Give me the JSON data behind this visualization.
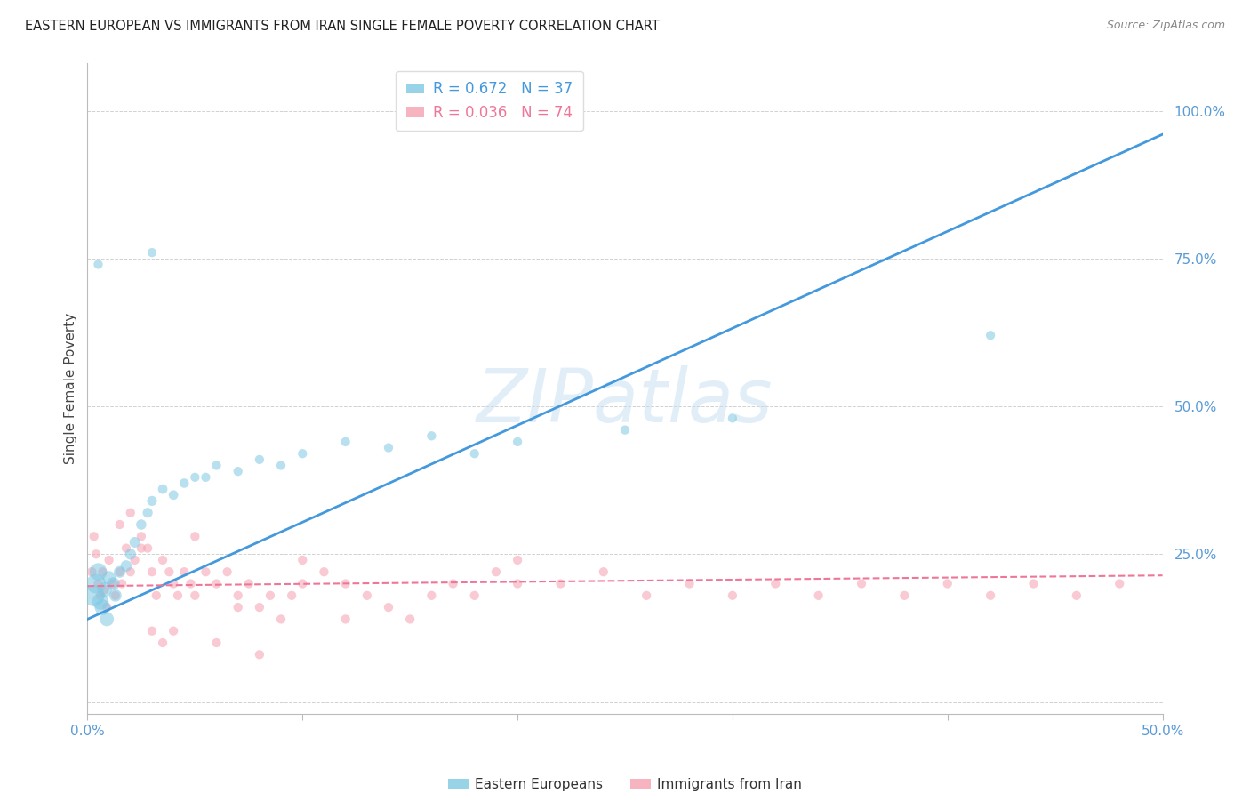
{
  "title": "EASTERN EUROPEAN VS IMMIGRANTS FROM IRAN SINGLE FEMALE POVERTY CORRELATION CHART",
  "source": "Source: ZipAtlas.com",
  "ylabel": "Single Female Poverty",
  "watermark": "ZIPatlas",
  "xlim": [
    0.0,
    0.5
  ],
  "ylim": [
    -0.02,
    1.08
  ],
  "blue_R": 0.672,
  "blue_N": 37,
  "pink_R": 0.036,
  "pink_N": 74,
  "blue_color": "#7ec8e3",
  "pink_color": "#f5a0b0",
  "blue_line_color": "#4499dd",
  "pink_line_color": "#ee7799",
  "legend_label_blue": "Eastern Europeans",
  "legend_label_pink": "Immigrants from Iran",
  "blue_scatter_x": [
    0.003,
    0.004,
    0.005,
    0.006,
    0.007,
    0.008,
    0.009,
    0.01,
    0.012,
    0.013,
    0.015,
    0.018,
    0.02,
    0.022,
    0.025,
    0.028,
    0.03,
    0.035,
    0.04,
    0.045,
    0.05,
    0.055,
    0.06,
    0.07,
    0.08,
    0.09,
    0.1,
    0.12,
    0.14,
    0.16,
    0.18,
    0.2,
    0.25,
    0.3,
    0.03,
    0.42,
    0.005
  ],
  "blue_scatter_y": [
    0.18,
    0.2,
    0.22,
    0.17,
    0.16,
    0.19,
    0.14,
    0.21,
    0.2,
    0.18,
    0.22,
    0.23,
    0.25,
    0.27,
    0.3,
    0.32,
    0.34,
    0.36,
    0.35,
    0.37,
    0.38,
    0.38,
    0.4,
    0.39,
    0.41,
    0.4,
    0.42,
    0.44,
    0.43,
    0.45,
    0.42,
    0.44,
    0.46,
    0.48,
    0.76,
    0.62,
    0.74
  ],
  "blue_scatter_size": [
    300,
    250,
    200,
    180,
    160,
    140,
    130,
    120,
    110,
    100,
    90,
    85,
    80,
    75,
    70,
    65,
    65,
    60,
    60,
    58,
    55,
    55,
    55,
    55,
    55,
    55,
    55,
    55,
    55,
    55,
    55,
    55,
    55,
    55,
    55,
    55,
    55
  ],
  "pink_scatter_x": [
    0.002,
    0.003,
    0.004,
    0.005,
    0.006,
    0.007,
    0.008,
    0.009,
    0.01,
    0.012,
    0.013,
    0.015,
    0.016,
    0.018,
    0.02,
    0.022,
    0.025,
    0.028,
    0.03,
    0.032,
    0.035,
    0.038,
    0.04,
    0.042,
    0.045,
    0.048,
    0.05,
    0.055,
    0.06,
    0.065,
    0.07,
    0.075,
    0.08,
    0.085,
    0.09,
    0.095,
    0.1,
    0.11,
    0.12,
    0.13,
    0.14,
    0.15,
    0.16,
    0.17,
    0.18,
    0.19,
    0.2,
    0.22,
    0.24,
    0.26,
    0.28,
    0.3,
    0.32,
    0.34,
    0.36,
    0.38,
    0.4,
    0.42,
    0.44,
    0.46,
    0.48,
    0.05,
    0.1,
    0.2,
    0.03,
    0.06,
    0.08,
    0.015,
    0.02,
    0.025,
    0.035,
    0.04,
    0.07,
    0.12
  ],
  "pink_scatter_y": [
    0.22,
    0.28,
    0.25,
    0.2,
    0.18,
    0.22,
    0.19,
    0.16,
    0.24,
    0.2,
    0.18,
    0.22,
    0.2,
    0.26,
    0.22,
    0.24,
    0.28,
    0.26,
    0.22,
    0.18,
    0.24,
    0.22,
    0.2,
    0.18,
    0.22,
    0.2,
    0.18,
    0.22,
    0.2,
    0.22,
    0.18,
    0.2,
    0.16,
    0.18,
    0.14,
    0.18,
    0.2,
    0.22,
    0.2,
    0.18,
    0.16,
    0.14,
    0.18,
    0.2,
    0.18,
    0.22,
    0.24,
    0.2,
    0.22,
    0.18,
    0.2,
    0.18,
    0.2,
    0.18,
    0.2,
    0.18,
    0.2,
    0.18,
    0.2,
    0.18,
    0.2,
    0.28,
    0.24,
    0.2,
    0.12,
    0.1,
    0.08,
    0.3,
    0.32,
    0.26,
    0.1,
    0.12,
    0.16,
    0.14
  ],
  "pink_scatter_size": [
    60,
    55,
    55,
    55,
    55,
    55,
    55,
    55,
    55,
    55,
    55,
    55,
    55,
    55,
    55,
    55,
    55,
    55,
    55,
    55,
    55,
    55,
    55,
    55,
    55,
    55,
    55,
    55,
    55,
    55,
    55,
    55,
    55,
    55,
    55,
    55,
    55,
    55,
    55,
    55,
    55,
    55,
    55,
    55,
    55,
    55,
    55,
    55,
    55,
    55,
    55,
    55,
    55,
    55,
    55,
    55,
    55,
    55,
    55,
    55,
    55,
    55,
    55,
    55,
    55,
    55,
    55,
    55,
    55,
    55,
    55,
    55,
    55,
    55
  ],
  "blue_line_x": [
    0.0,
    0.5
  ],
  "blue_line_y": [
    0.14,
    0.96
  ],
  "pink_line_x": [
    0.0,
    0.5
  ],
  "pink_line_y": [
    0.196,
    0.214
  ],
  "grid_color": "#cccccc",
  "background_color": "#ffffff",
  "title_color": "#222222",
  "tick_color": "#5b9bd5"
}
